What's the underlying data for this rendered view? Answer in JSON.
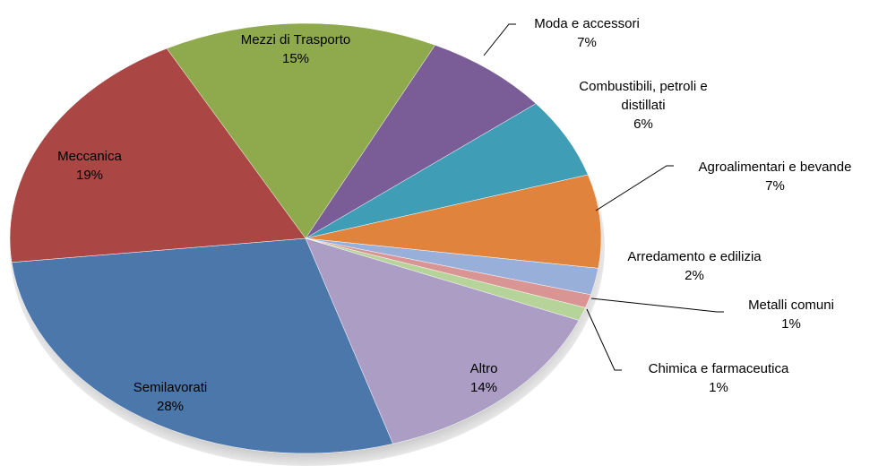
{
  "chart_data": {
    "type": "pie",
    "categories": [
      "Mezzi di Trasporto",
      "Moda e accessori",
      "Combustibili, petroli e distillati",
      "Agroalimentari e bevande",
      "Arredamento e edilizia",
      "Metalli comuni",
      "Chimica e farmaceutica",
      "Altro",
      "Semilavorati",
      "Meccanica"
    ],
    "values": [
      15,
      7,
      6,
      7,
      2,
      1,
      1,
      14,
      28,
      19
    ],
    "value_labels": [
      "15%",
      "7%",
      "6%",
      "7%",
      "2%",
      "1%",
      "1%",
      "14%",
      "28%",
      "19%"
    ],
    "colors": [
      "#8faa4c",
      "#7a5c96",
      "#3f9db5",
      "#e0843d",
      "#98afd9",
      "#d99593",
      "#b6d39a",
      "#ab9dc4",
      "#4b77aa",
      "#aa4643"
    ]
  }
}
